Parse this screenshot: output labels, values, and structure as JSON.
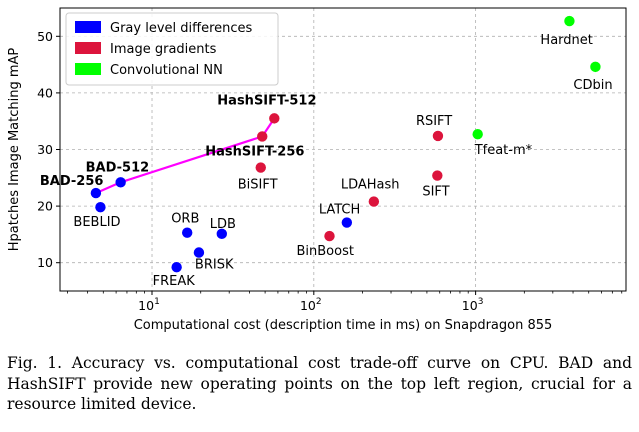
{
  "chart_data": {
    "type": "scatter",
    "xlabel": "Computational cost (description time in ms) on Snapdragon 855",
    "ylabel": "Hpatches Image Matching mAP",
    "xscale": "log",
    "xlim": [
      2.7,
      8500
    ],
    "ylim": [
      5,
      55
    ],
    "yticks": [
      10,
      20,
      30,
      40,
      50
    ],
    "xticks": [
      {
        "value": 10,
        "base": "10",
        "exp": "1"
      },
      {
        "value": 100,
        "base": "10",
        "exp": "2"
      },
      {
        "value": 1000,
        "base": "10",
        "exp": "3"
      }
    ],
    "grid": true,
    "legend_position": "top-left",
    "legend": [
      {
        "label": "Gray level differences",
        "color": "#0000ff"
      },
      {
        "label": "Image gradients",
        "color": "#dc143c"
      },
      {
        "label": "Convolutional NN",
        "color": "#00ff00"
      }
    ],
    "series": [
      {
        "name": "Gray level differences",
        "color": "#0000ff",
        "points": [
          {
            "label": "BAD-256",
            "x": 4.5,
            "y": 22.3,
            "bold": true
          },
          {
            "label": "BAD-512",
            "x": 6.4,
            "y": 24.2,
            "bold": true
          },
          {
            "label": "BEBLID",
            "x": 4.8,
            "y": 19.8,
            "bold": false
          },
          {
            "label": "ORB",
            "x": 16.5,
            "y": 15.3,
            "bold": false
          },
          {
            "label": "LDB",
            "x": 27,
            "y": 15.1,
            "bold": false
          },
          {
            "label": "BRISK",
            "x": 19.5,
            "y": 11.8,
            "bold": false
          },
          {
            "label": "FREAK",
            "x": 14.2,
            "y": 9.2,
            "bold": false
          },
          {
            "label": "LATCH",
            "x": 160,
            "y": 17.1,
            "bold": false
          }
        ]
      },
      {
        "name": "Image gradients",
        "color": "#dc143c",
        "points": [
          {
            "label": "HashSIFT-512",
            "x": 57,
            "y": 35.5,
            "bold": true
          },
          {
            "label": "HashSIFT-256",
            "x": 48,
            "y": 32.3,
            "bold": true
          },
          {
            "label": "BiSIFT",
            "x": 47,
            "y": 26.8,
            "bold": false
          },
          {
            "label": "LDAHash",
            "x": 235,
            "y": 20.8,
            "bold": false
          },
          {
            "label": "BinBoost",
            "x": 125,
            "y": 14.7,
            "bold": false
          },
          {
            "label": "RSIFT",
            "x": 585,
            "y": 32.4,
            "bold": false
          },
          {
            "label": "SIFT",
            "x": 580,
            "y": 25.4,
            "bold": false
          }
        ]
      },
      {
        "name": "Convolutional NN",
        "color": "#00ff00",
        "points": [
          {
            "label": "Hardnet",
            "x": 3800,
            "y": 52.7,
            "bold": false
          },
          {
            "label": "CDbin",
            "x": 5500,
            "y": 44.6,
            "bold": false
          },
          {
            "label": "Tfeat-m*",
            "x": 1030,
            "y": 32.7,
            "bold": false
          }
        ]
      }
    ],
    "tradeoff_curve": {
      "color": "#ff00ff",
      "through": [
        "BAD-256",
        "BAD-512",
        "HashSIFT-256",
        "HashSIFT-512"
      ]
    }
  },
  "caption": "Fig. 1.  Accuracy vs. computational cost trade-off curve on CPU. BAD and HashSIFT provide new operating points on the top left region, crucial for a resource limited device."
}
